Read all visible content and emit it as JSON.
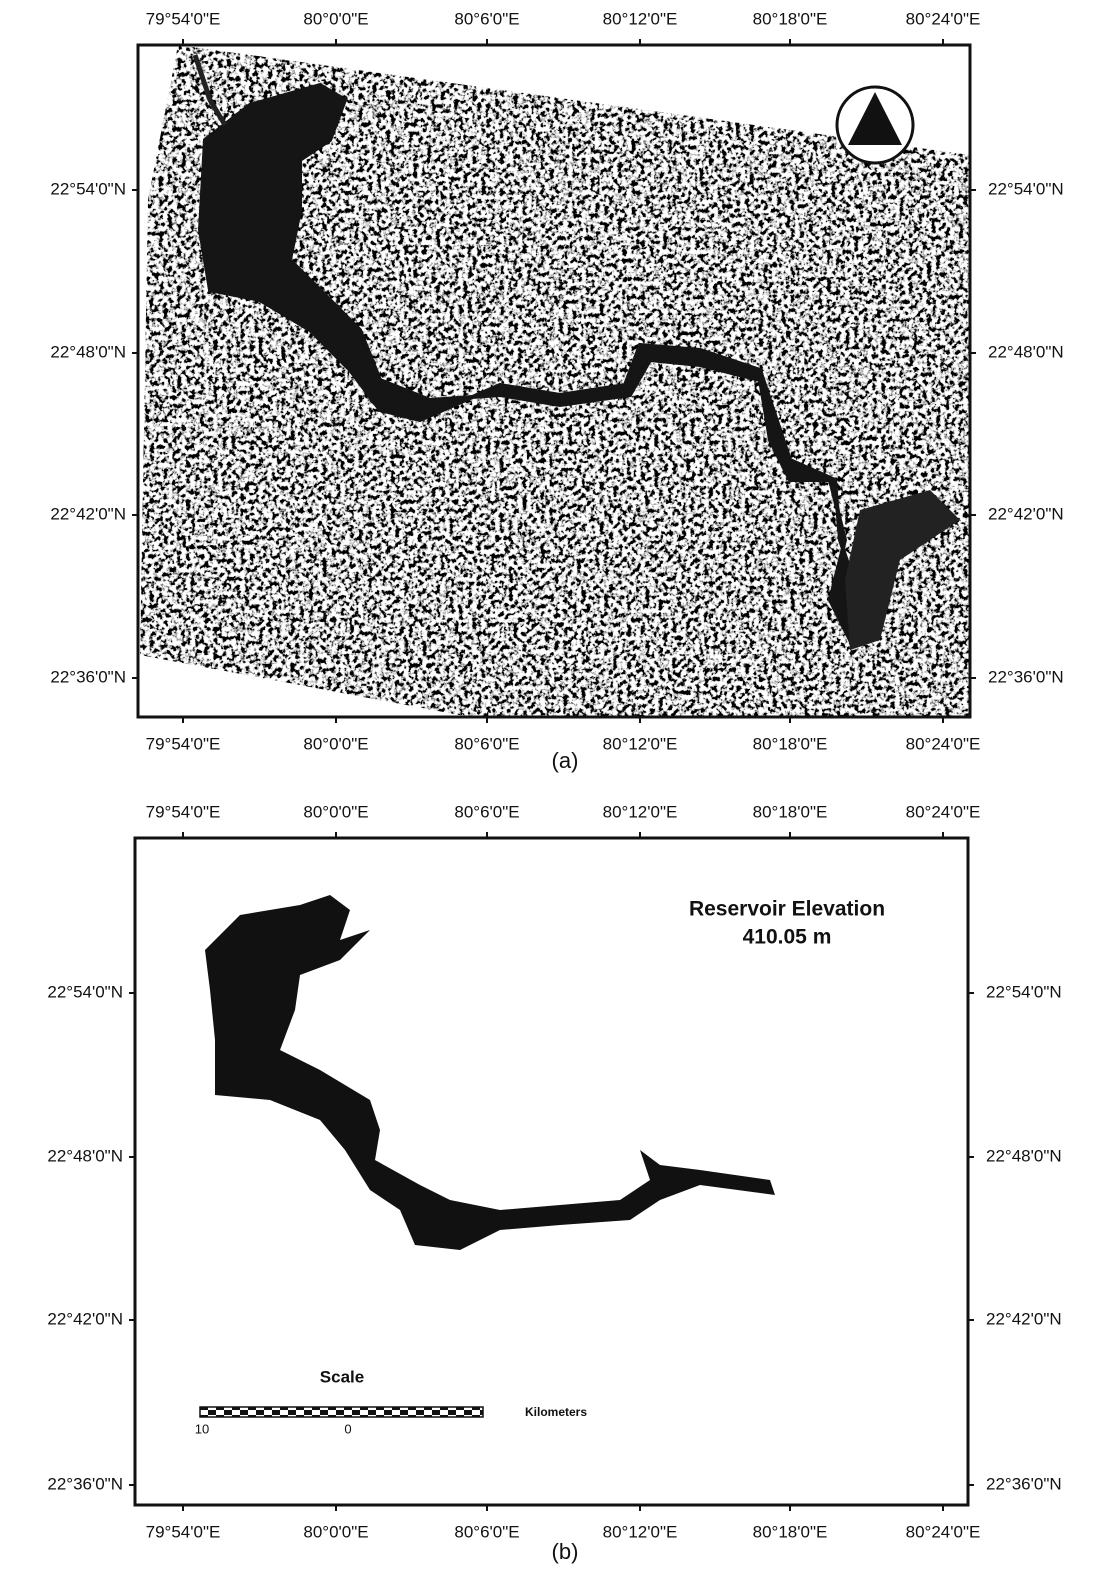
{
  "panel_a": {
    "label": "(a)",
    "lon_labels": [
      "79°54'0\"E",
      "80°0'0\"E",
      "80°6'0\"E",
      "80°12'0\"E",
      "80°18'0\"E",
      "80°24'0\"E"
    ],
    "lat_labels": [
      "22°54'0\"N",
      "22°48'0\"N",
      "22°42'0\"N",
      "22°36'0\"N"
    ]
  },
  "panel_b": {
    "label": "(b)",
    "lon_labels": [
      "79°54'0\"E",
      "80°0'0\"E",
      "80°6'0\"E",
      "80°12'0\"E",
      "80°18'0\"E",
      "80°24'0\"E"
    ],
    "lat_labels": [
      "22°54'0\"N",
      "22°48'0\"N",
      "22°42'0\"N",
      "22°36'0\"N"
    ],
    "annotation": [
      "Reservoir Elevation",
      "410.05 m"
    ],
    "scale": {
      "title": "Scale",
      "labels": [
        "10",
        "0"
      ],
      "unit": "Kilometers"
    }
  }
}
